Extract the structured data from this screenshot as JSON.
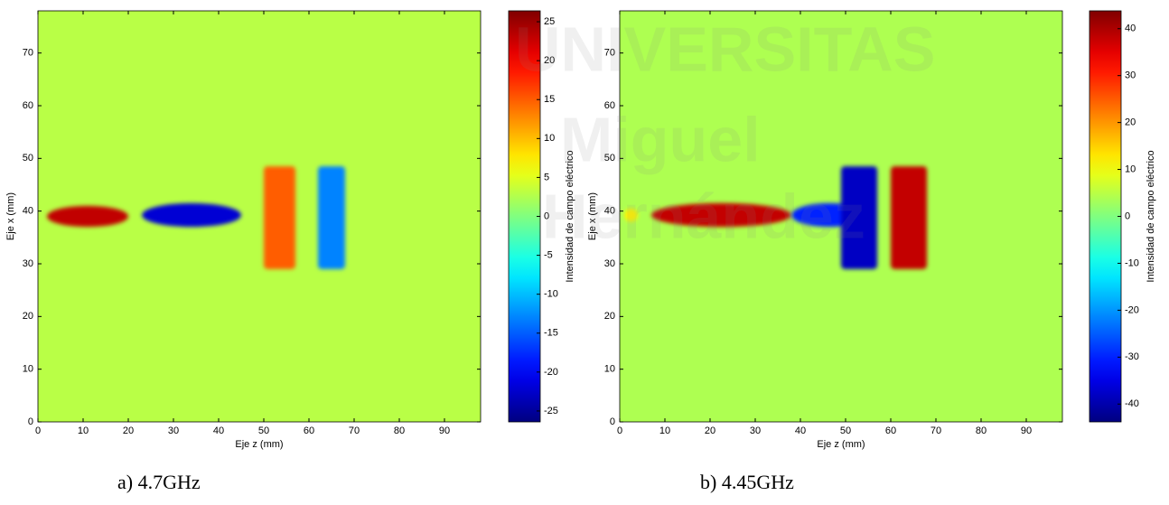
{
  "watermark": [
    "UNIVERSITAS",
    "Miguel",
    "Hernández"
  ],
  "chart_data": [
    {
      "type": "heatmap",
      "caption": "a) 4.7GHz",
      "xlabel": "Eje z (mm)",
      "ylabel": "Eje x (mm)",
      "colorbar_label": "Intensidad de campo eléctrico",
      "xlim": [
        0,
        98
      ],
      "ylim": [
        0,
        78
      ],
      "xticks": [
        0,
        10,
        20,
        30,
        40,
        50,
        60,
        70,
        80,
        90
      ],
      "yticks": [
        0,
        10,
        20,
        30,
        40,
        50,
        60,
        70
      ],
      "clim": [
        -26.4,
        26.4
      ],
      "cticks": [
        -25,
        -20,
        -15,
        -10,
        -5,
        0,
        5,
        10,
        15,
        20,
        25
      ],
      "colormap": "jet",
      "background": 3,
      "regions": [
        {
          "shape": "ellipse",
          "x": [
            2,
            20
          ],
          "y": [
            37,
            41
          ],
          "value": 23
        },
        {
          "shape": "ellipse",
          "x": [
            23,
            45
          ],
          "y": [
            37,
            41.5
          ],
          "value": -22
        },
        {
          "shape": "rect",
          "x": [
            50,
            57
          ],
          "y": [
            29,
            48.5
          ],
          "value": 15
        },
        {
          "shape": "rect",
          "x": [
            62,
            68
          ],
          "y": [
            29,
            48.5
          ],
          "value": -13
        }
      ]
    },
    {
      "type": "heatmap",
      "caption": "b) 4.45GHz",
      "xlabel": "Eje z (mm)",
      "ylabel": "Eje x (mm)",
      "colorbar_label": "Intensidad de campo eléctrico",
      "xlim": [
        0,
        98
      ],
      "ylim": [
        0,
        78
      ],
      "xticks": [
        0,
        10,
        20,
        30,
        40,
        50,
        60,
        70,
        80,
        90
      ],
      "yticks": [
        0,
        10,
        20,
        30,
        40,
        50,
        60,
        70
      ],
      "clim": [
        -43.8,
        43.8
      ],
      "cticks": [
        -40,
        -30,
        -20,
        -10,
        0,
        10,
        20,
        30,
        40
      ],
      "colormap": "jet",
      "background": 4,
      "regions": [
        {
          "shape": "ellipse",
          "x": [
            1,
            4
          ],
          "y": [
            38,
            40.5
          ],
          "value": 12
        },
        {
          "shape": "ellipse",
          "x": [
            7,
            38
          ],
          "y": [
            37,
            41.5
          ],
          "value": 38
        },
        {
          "shape": "ellipse",
          "x": [
            38,
            55
          ],
          "y": [
            37,
            41.5
          ],
          "value": -30
        },
        {
          "shape": "rect",
          "x": [
            49,
            57
          ],
          "y": [
            29,
            48.5
          ],
          "value": -38
        },
        {
          "shape": "rect",
          "x": [
            60,
            68
          ],
          "y": [
            29,
            48.5
          ],
          "value": 38
        }
      ]
    }
  ]
}
